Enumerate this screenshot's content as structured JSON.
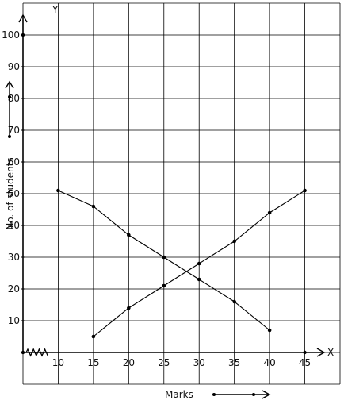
{
  "chart_data": {
    "type": "line",
    "xlabel": "Marks",
    "ylabel": "No. of students",
    "x_axis_letter": "X",
    "y_axis_letter": "Y",
    "xlim": [
      5,
      50
    ],
    "ylim": [
      -10,
      110
    ],
    "x_ticks": [
      10,
      15,
      20,
      25,
      30,
      35,
      40,
      45
    ],
    "y_ticks": [
      10,
      20,
      30,
      40,
      50,
      60,
      70,
      80,
      90,
      100
    ],
    "x_tick_labels": [
      "10",
      "15",
      "20",
      "25",
      "30",
      "35",
      "40",
      "45"
    ],
    "y_tick_labels": [
      "10",
      "20",
      "30",
      "40",
      "50",
      "60",
      "70",
      "80",
      "90",
      "100"
    ],
    "grid": true,
    "axis_break_on_x": true,
    "series": [
      {
        "x": [
          10,
          15,
          20,
          25,
          30,
          35,
          40
        ],
        "y": [
          51,
          46,
          37,
          30,
          23,
          16,
          7
        ]
      },
      {
        "x": [
          15,
          20,
          25,
          30,
          35,
          40,
          45
        ],
        "y": [
          5,
          14,
          21,
          28,
          35,
          44,
          51
        ]
      }
    ]
  }
}
